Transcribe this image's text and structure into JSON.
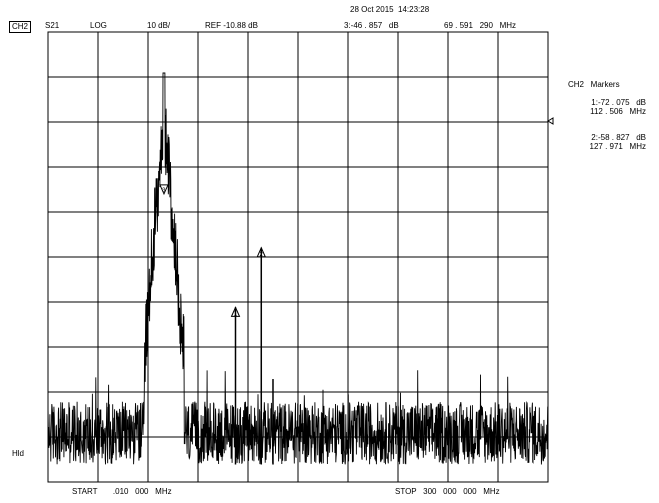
{
  "header": {
    "timestamp": "28 Oct 2015  14:23:28",
    "channel": "CH2",
    "parameter": "S21",
    "format": "LOG",
    "scale": "10 dB/",
    "reference": "REF -10.88 dB",
    "active_marker": "3:-46 . 857   dB",
    "active_marker_freq": "69 . 591   290   MHz"
  },
  "side": {
    "hold": "Hld"
  },
  "markers_panel": {
    "title": "CH2   Markers",
    "m1_value": "1:-72 . 075   dB",
    "m1_freq": "112 . 506   MHz",
    "m2_value": "2:-58 . 827   dB",
    "m2_freq": "127 . 971   MHz"
  },
  "footer": {
    "start": "START       .010   000   MHz",
    "stop": "STOP   300   000   000   MHz"
  },
  "trace": {
    "color": "#000000",
    "start_mhz": 0.01,
    "stop_mhz": 300,
    "ref_db": -10.88,
    "db_per_div": 10,
    "divisions": 10,
    "noise_floor_db": -105,
    "peak_mhz": 69.59,
    "peak_db": -20.0,
    "markers": [
      {
        "id": "1",
        "mhz": 112.506,
        "db": -72.075
      },
      {
        "id": "2",
        "mhz": 127.971,
        "db": -58.827
      },
      {
        "id": "3",
        "mhz": 69.591,
        "db": -46.857
      }
    ]
  }
}
